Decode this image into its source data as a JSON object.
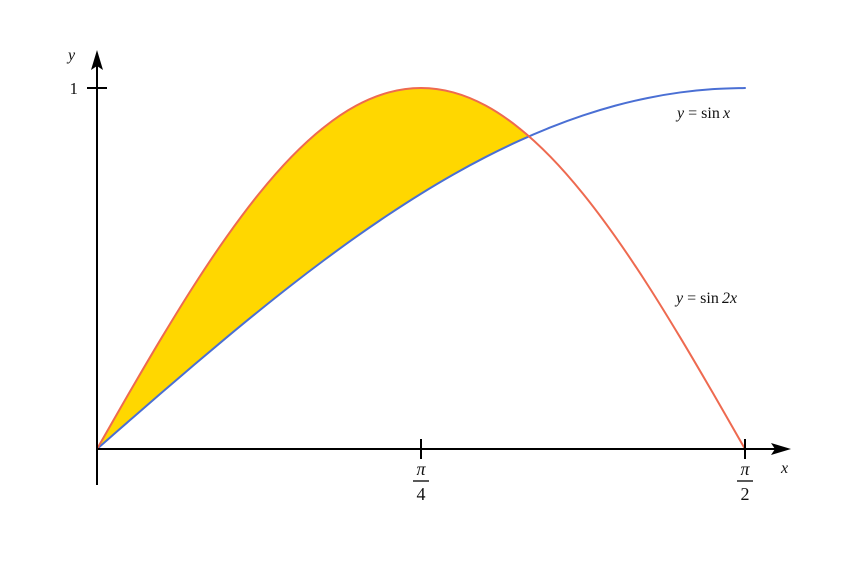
{
  "chart_data": {
    "type": "line",
    "title": "",
    "xlabel": "x",
    "ylabel": "y",
    "xlim": [
      0,
      1.5708
    ],
    "ylim": [
      0,
      1
    ],
    "grid": false,
    "legend": "none",
    "x_ticks": [
      {
        "value": 0.7854,
        "numerator": "π",
        "denominator": "4"
      },
      {
        "value": 1.5708,
        "numerator": "π",
        "denominator": "2"
      }
    ],
    "y_ticks": [
      {
        "value": 1,
        "label": "1"
      }
    ],
    "series": [
      {
        "function": "sin x",
        "label_lhs": "y",
        "label_eq": "=",
        "label_fn": "sin",
        "label_arg": "x",
        "color": "#4a6fd4",
        "x": [
          0,
          0.0785,
          0.1571,
          0.2356,
          0.3142,
          0.3927,
          0.4712,
          0.5498,
          0.6283,
          0.7069,
          0.7854,
          0.8639,
          0.9425,
          1.021,
          1.0996,
          1.1781,
          1.2566,
          1.3352,
          1.4137,
          1.4923,
          1.5708
        ],
        "values": [
          0,
          0.0785,
          0.1564,
          0.2334,
          0.309,
          0.3827,
          0.454,
          0.5225,
          0.5878,
          0.6494,
          0.7071,
          0.7604,
          0.809,
          0.8526,
          0.891,
          0.9239,
          0.9511,
          0.9724,
          0.9877,
          0.9969,
          1
        ]
      },
      {
        "function": "sin 2x",
        "label_lhs": "y",
        "label_eq": "=",
        "label_fn": "sin",
        "label_arg": "2x",
        "color": "#ee6a50",
        "x": [
          0,
          0.0785,
          0.1571,
          0.2356,
          0.3142,
          0.3927,
          0.4712,
          0.5498,
          0.6283,
          0.7069,
          0.7854,
          0.8639,
          0.9425,
          1.021,
          1.0996,
          1.1781,
          1.2566,
          1.3352,
          1.4137,
          1.4923,
          1.5708
        ],
        "values": [
          0,
          0.1564,
          0.309,
          0.454,
          0.5878,
          0.7071,
          0.809,
          0.891,
          0.9511,
          0.9877,
          1,
          0.9877,
          0.9511,
          0.891,
          0.809,
          0.7071,
          0.5878,
          0.454,
          0.309,
          0.1564,
          0
        ]
      }
    ],
    "shaded_region": {
      "between": [
        "sin 2x",
        "sin x"
      ],
      "x_range": [
        0,
        1.0472
      ],
      "color": "#ffd700"
    }
  }
}
